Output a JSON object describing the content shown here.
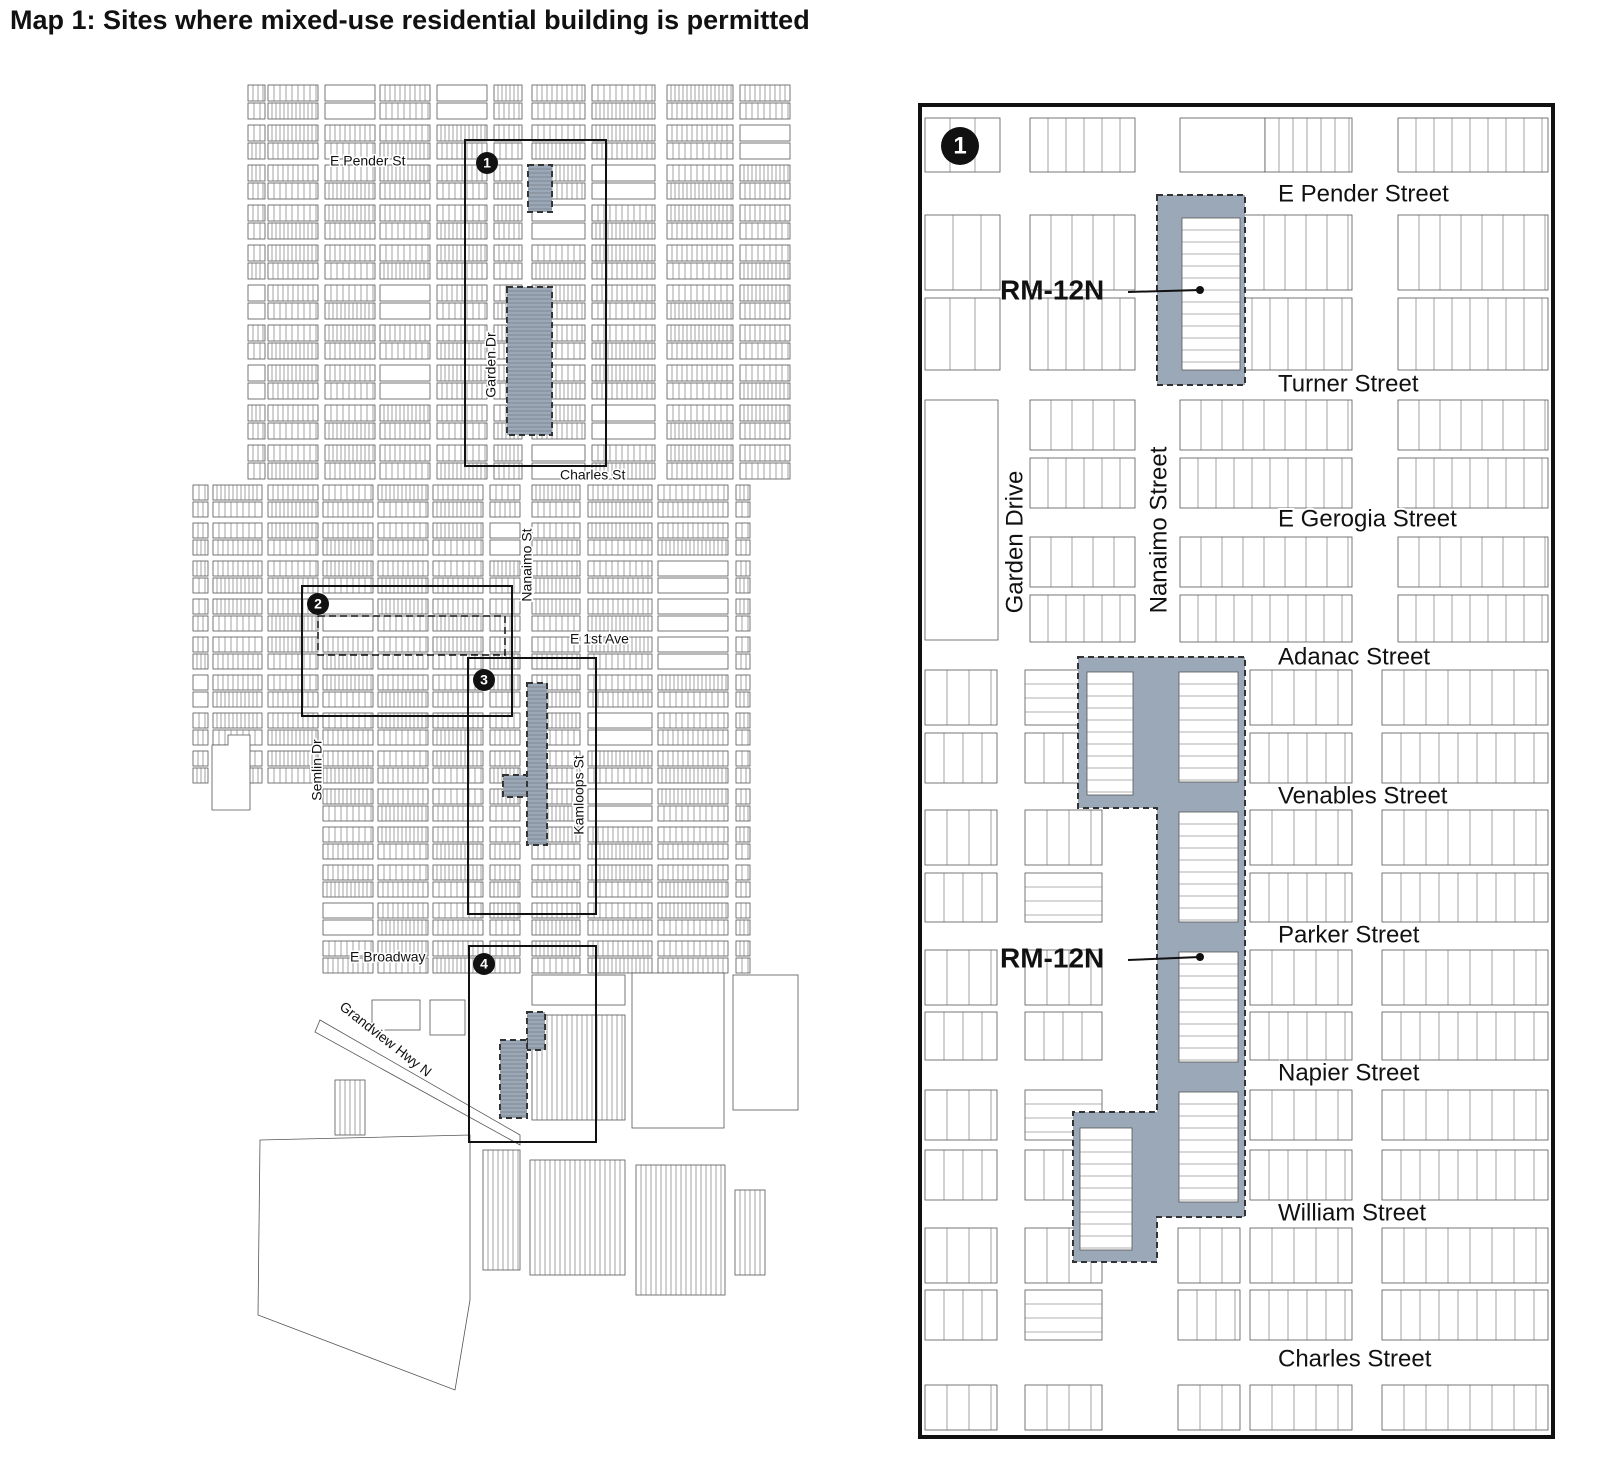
{
  "title": "Map 1: Sites where mixed-use residential building is permitted",
  "overview": {
    "streets": [
      "E Pender St",
      "Garden Dr",
      "Charles St",
      "Nanaimo St",
      "E 1st Ave",
      "Semlin Dr",
      "Kamloops St",
      "E Broadway",
      "Grandview Hwy N"
    ],
    "areas": [
      "1",
      "2",
      "3",
      "4"
    ]
  },
  "inset": {
    "area": "1",
    "streets": [
      "E Pender Street",
      "Turner Street",
      "E Gerogia Street",
      "Adanac Street",
      "Venables Street",
      "Parker Street",
      "Napier Street",
      "William Street",
      "Charles Street",
      "Garden Drive",
      "Nanaimo Street"
    ],
    "zones": [
      "RM-12N",
      "RM-12N"
    ]
  }
}
